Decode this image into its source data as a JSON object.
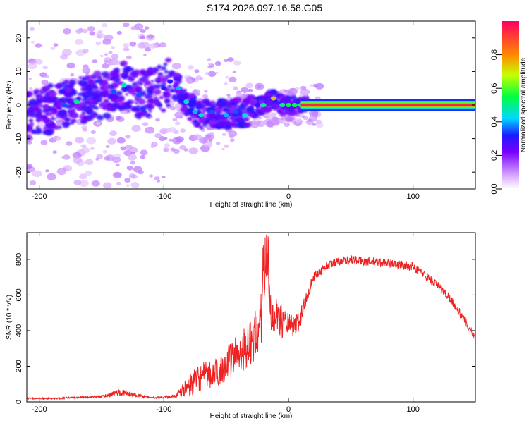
{
  "title": "S174.2026.097.16.58.G05",
  "colorbar": {
    "label": "Normalized spectral amplitude",
    "ticks": [
      "0.0",
      "0.2",
      "0.4",
      "0.6",
      "0.8"
    ],
    "tick_values": [
      0.0,
      0.2,
      0.4,
      0.6,
      0.8
    ],
    "range": [
      0,
      1
    ]
  },
  "chart_data": [
    {
      "type": "heatmap",
      "xlabel": "Height of straight line (km)",
      "ylabel": "Frequency (Hz)",
      "xlim": [
        -210,
        150
      ],
      "ylim": [
        -25,
        25
      ],
      "xticks": [
        -200,
        -100,
        0,
        100
      ],
      "xtick_labels": [
        "-200",
        "-100",
        "0",
        "100"
      ],
      "yticks": [
        -20,
        -10,
        0,
        10,
        20
      ],
      "ytick_labels": [
        "-20",
        "-10",
        "0",
        "10",
        "20"
      ],
      "description_points": [
        {
          "x": -180,
          "y": 0,
          "v": 0.35
        },
        {
          "x": -170,
          "y": 1,
          "v": 0.5
        },
        {
          "x": -140,
          "y": 4,
          "v": 0.35
        },
        {
          "x": -132,
          "y": 6,
          "v": 0.45
        },
        {
          "x": -120,
          "y": 3,
          "v": 0.35
        },
        {
          "x": -100,
          "y": 5,
          "v": 0.3
        },
        {
          "x": -95,
          "y": 7,
          "v": 0.3
        },
        {
          "x": -88,
          "y": 5,
          "v": 0.4
        },
        {
          "x": -82,
          "y": 1,
          "v": 0.45
        },
        {
          "x": -75,
          "y": -2,
          "v": 0.4
        },
        {
          "x": -70,
          "y": -3,
          "v": 0.45
        },
        {
          "x": -62,
          "y": -2,
          "v": 0.35
        },
        {
          "x": -50,
          "y": -3,
          "v": 0.4
        },
        {
          "x": -42,
          "y": -2,
          "v": 0.35
        },
        {
          "x": -35,
          "y": -3,
          "v": 0.45
        },
        {
          "x": -25,
          "y": 0,
          "v": 0.3
        },
        {
          "x": -20,
          "y": 0,
          "v": 0.5
        },
        {
          "x": -12,
          "y": 2,
          "v": 0.75
        },
        {
          "x": -5,
          "y": 0,
          "v": 0.5
        },
        {
          "x": 0,
          "y": 0,
          "v": 0.55
        },
        {
          "x": 5,
          "y": 0,
          "v": 0.55
        },
        {
          "x": 10,
          "y": 0,
          "v": 0.5
        },
        {
          "x": 107,
          "y": 0,
          "v": 0.55
        }
      ],
      "band": {
        "x_start": 10,
        "x_end": 150,
        "y": 0,
        "value": 0.95
      }
    },
    {
      "type": "line",
      "xlabel": "Height of straight line (km)",
      "ylabel": "SNR (10 * v/v)",
      "xlim": [
        -210,
        150
      ],
      "ylim": [
        0,
        950
      ],
      "xticks": [
        -200,
        -100,
        0,
        100
      ],
      "xtick_labels": [
        "-200",
        "-100",
        "0",
        "100"
      ],
      "yticks": [
        0,
        200,
        400,
        600,
        800
      ],
      "ytick_labels": [
        "0",
        "200",
        "400",
        "600",
        "800"
      ],
      "series": [
        {
          "name": "SNR",
          "color": "#ee2222",
          "x": [
            -210,
            -190,
            -170,
            -150,
            -135,
            -125,
            -110,
            -100,
            -90,
            -80,
            -70,
            -60,
            -50,
            -40,
            -30,
            -25,
            -20,
            -18,
            -15,
            -10,
            -5,
            0,
            5,
            10,
            15,
            20,
            30,
            40,
            50,
            60,
            70,
            80,
            90,
            100,
            110,
            120,
            130,
            140,
            150
          ],
          "values": [
            20,
            18,
            25,
            30,
            55,
            40,
            25,
            25,
            35,
            90,
            140,
            150,
            210,
            280,
            330,
            400,
            500,
            900,
            540,
            500,
            450,
            440,
            420,
            480,
            600,
            700,
            760,
            790,
            800,
            790,
            785,
            780,
            770,
            760,
            710,
            650,
            580,
            470,
            360
          ],
          "noise_amplitude": [
            4,
            4,
            5,
            7,
            20,
            12,
            6,
            6,
            15,
            60,
            80,
            80,
            90,
            120,
            130,
            140,
            180,
            80,
            140,
            110,
            90,
            60,
            60,
            60,
            40,
            25,
            25,
            25,
            25,
            25,
            25,
            25,
            25,
            25,
            25,
            25,
            25,
            25,
            20
          ]
        }
      ]
    }
  ]
}
